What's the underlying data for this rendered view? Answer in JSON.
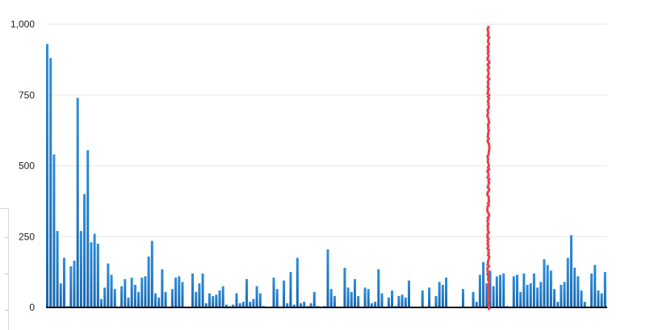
{
  "chart_data": {
    "type": "bar",
    "title": "",
    "xlabel": "",
    "ylabel": "",
    "ylim": [
      0,
      1000
    ],
    "yticks": [
      0,
      250,
      500,
      750,
      1000
    ],
    "ytick_labels": [
      "0",
      "250",
      "500",
      "750",
      "1,000"
    ],
    "grid": true,
    "bar_color": "#2f8fdc",
    "bar_color_dark": "#1566ad",
    "marker_color": "#e8434a",
    "marker_after_bar_index": 130,
    "values": [
      930,
      880,
      540,
      270,
      85,
      175,
      5,
      145,
      165,
      740,
      270,
      400,
      555,
      230,
      260,
      225,
      30,
      70,
      155,
      115,
      65,
      0,
      75,
      100,
      35,
      105,
      80,
      55,
      105,
      110,
      180,
      235,
      50,
      35,
      135,
      55,
      0,
      65,
      105,
      110,
      90,
      0,
      0,
      120,
      55,
      85,
      120,
      15,
      50,
      40,
      45,
      60,
      75,
      10,
      5,
      10,
      50,
      15,
      20,
      100,
      20,
      30,
      75,
      50,
      5,
      0,
      0,
      105,
      65,
      0,
      95,
      15,
      125,
      10,
      175,
      15,
      20,
      5,
      15,
      55,
      5,
      0,
      5,
      205,
      65,
      40,
      0,
      0,
      140,
      70,
      55,
      100,
      40,
      0,
      70,
      65,
      15,
      20,
      135,
      50,
      0,
      35,
      60,
      5,
      40,
      45,
      35,
      95,
      0,
      0,
      0,
      60,
      0,
      70,
      0,
      40,
      90,
      80,
      105,
      0,
      0,
      0,
      0,
      65,
      0,
      0,
      55,
      20,
      115,
      160,
      85,
      130,
      75,
      110,
      115,
      120,
      5,
      0,
      110,
      115,
      55,
      120,
      80,
      85,
      120,
      70,
      90,
      170,
      150,
      130,
      65,
      20,
      80,
      90,
      175,
      255,
      140,
      110,
      60,
      20,
      0,
      120,
      150,
      60,
      50,
      125
    ]
  }
}
